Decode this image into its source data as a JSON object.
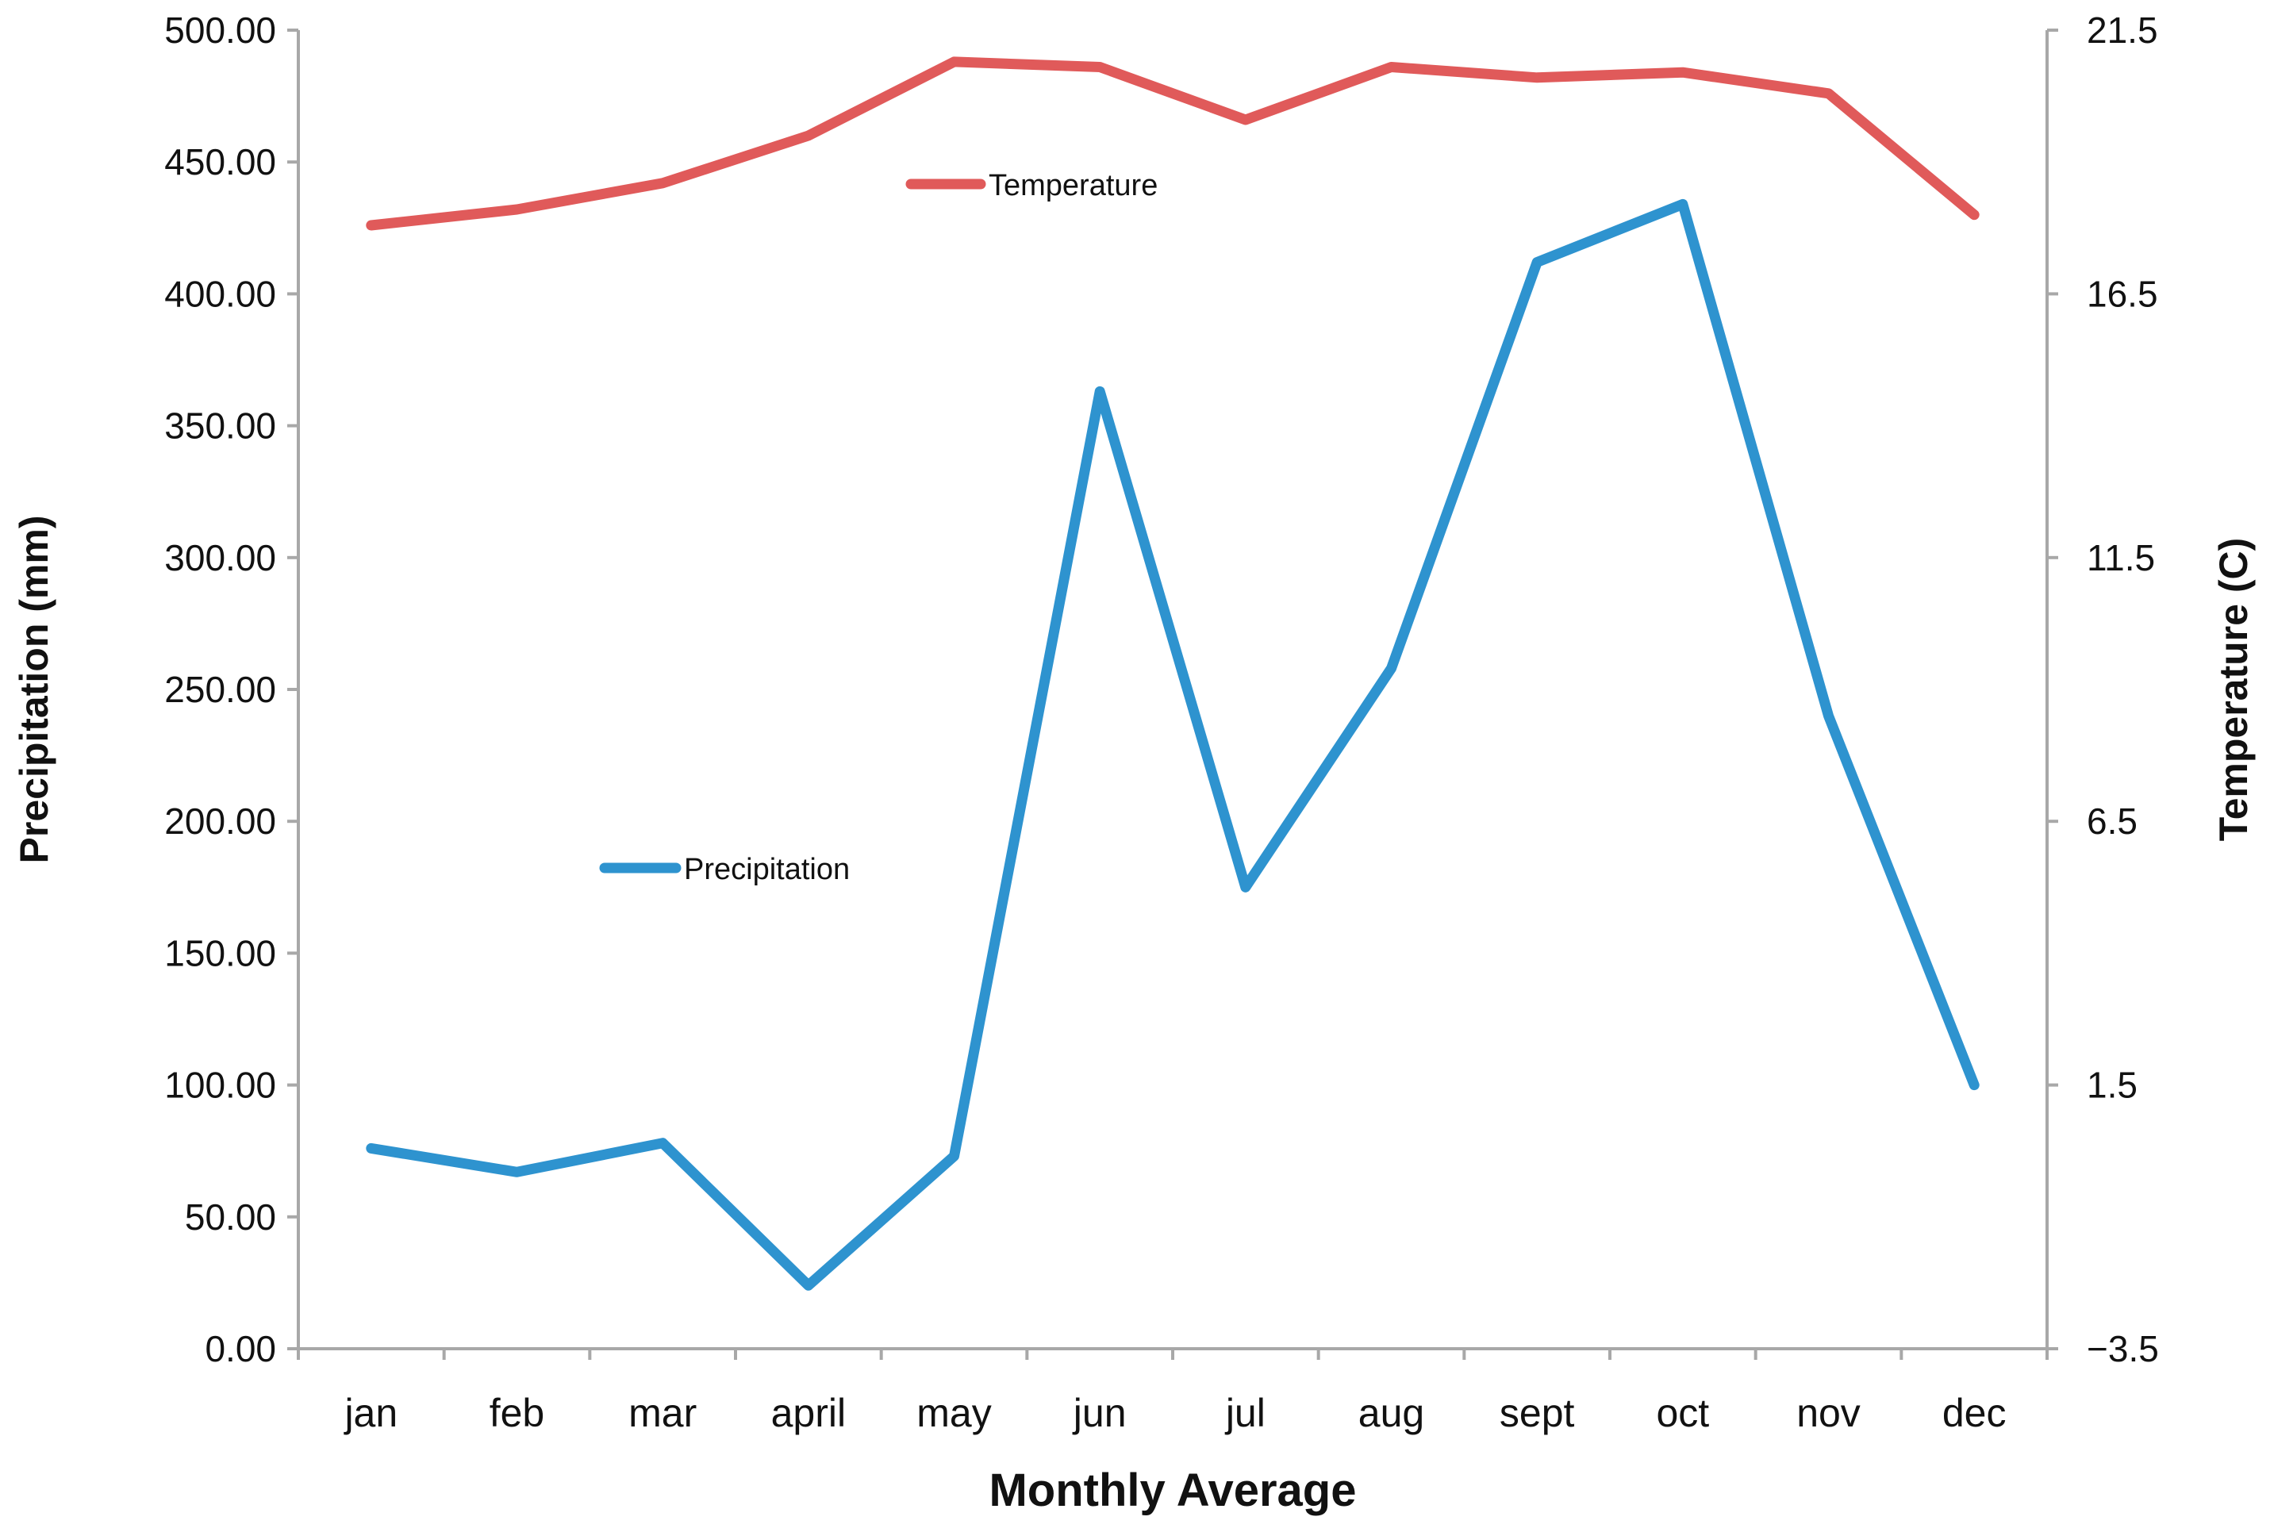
{
  "chart_data": {
    "type": "line",
    "title": "",
    "xlabel": "Monthly Average",
    "ylabel_left": "Precipitation (mm)",
    "ylabel_right": "Temperature (C)",
    "categories": [
      "jan",
      "feb",
      "mar",
      "april",
      "may",
      "jun",
      "jul",
      "aug",
      "sept",
      "oct",
      "nov",
      "dec"
    ],
    "y_left": {
      "range": [
        0,
        500
      ],
      "ticks": [
        "0.00",
        "50.00",
        "100.00",
        "150.00",
        "200.00",
        "250.00",
        "300.00",
        "350.00",
        "400.00",
        "450.00",
        "500.00"
      ]
    },
    "y_right": {
      "range": [
        -3.5,
        21.5
      ],
      "ticks": [
        "−3.5",
        "1.5",
        "6.5",
        "11.5",
        "16.5",
        "21.5"
      ]
    },
    "series": [
      {
        "name": "Temperature",
        "axis": "right",
        "color": "#e05a5a",
        "values": [
          17.8,
          18.1,
          18.6,
          19.5,
          20.9,
          20.8,
          19.8,
          20.8,
          20.6,
          20.7,
          20.3,
          18.0
        ]
      },
      {
        "name": "Precipitation",
        "axis": "left",
        "color": "#2e93cf",
        "values": [
          76,
          67,
          78,
          24,
          73,
          363,
          175,
          258,
          412,
          434,
          240,
          100
        ]
      }
    ],
    "grid": false,
    "legend": "inline"
  }
}
